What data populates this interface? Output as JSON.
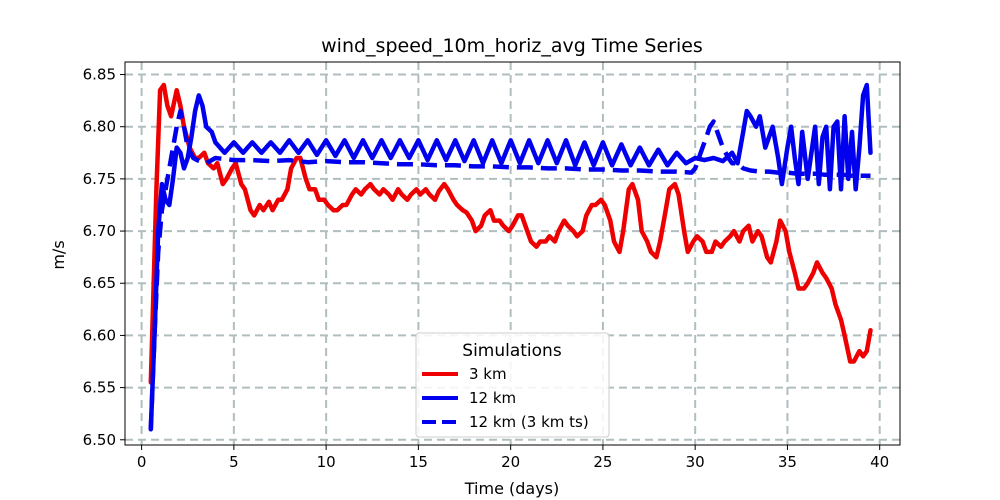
{
  "chart_data": {
    "type": "line",
    "title": "wind_speed_10m_horiz_avg Time Series",
    "xlabel": "Time (days)",
    "ylabel": "m/s",
    "xlim": [
      -0.9,
      41.1
    ],
    "ylim": [
      6.495,
      6.862
    ],
    "xticks": [
      "0",
      "5",
      "10",
      "15",
      "20",
      "25",
      "30",
      "35",
      "40"
    ],
    "yticks": [
      "6.50",
      "6.55",
      "6.60",
      "6.65",
      "6.70",
      "6.75",
      "6.80",
      "6.85"
    ],
    "grid": true,
    "legend": {
      "title": "Simulations",
      "position": "bottom-center"
    },
    "series": [
      {
        "name": "3 km",
        "color": "#ee0000",
        "style": "solid",
        "x": [
          0.5,
          0.8,
          1.0,
          1.2,
          1.4,
          1.6,
          1.9,
          2.1,
          2.3,
          2.6,
          2.9,
          3.1,
          3.4,
          3.6,
          3.9,
          4.1,
          4.4,
          4.6,
          4.9,
          5.1,
          5.4,
          5.6,
          5.9,
          6.1,
          6.4,
          6.6,
          6.9,
          7.1,
          7.4,
          7.6,
          7.9,
          8.1,
          8.4,
          8.6,
          8.9,
          9.1,
          9.4,
          9.6,
          9.9,
          10.1,
          10.4,
          10.6,
          10.9,
          11.1,
          11.4,
          11.6,
          11.9,
          12.1,
          12.4,
          12.6,
          12.9,
          13.1,
          13.4,
          13.6,
          13.9,
          14.1,
          14.4,
          14.6,
          14.9,
          15.1,
          15.4,
          15.6,
          15.9,
          16.1,
          16.4,
          16.6,
          16.9,
          17.1,
          17.4,
          17.6,
          17.9,
          18.1,
          18.4,
          18.6,
          18.9,
          19.1,
          19.4,
          19.6,
          19.9,
          20.1,
          20.4,
          20.6,
          20.9,
          21.1,
          21.4,
          21.6,
          21.9,
          22.1,
          22.4,
          22.6,
          22.9,
          23.1,
          23.4,
          23.6,
          23.9,
          24.1,
          24.4,
          24.6,
          24.9,
          25.1,
          25.4,
          25.6,
          25.9,
          26.1,
          26.4,
          26.6,
          26.9,
          27.1,
          27.4,
          27.6,
          27.9,
          28.1,
          28.4,
          28.6,
          28.9,
          29.1,
          29.4,
          29.6,
          29.9,
          30.1,
          30.4,
          30.6,
          30.9,
          31.1,
          31.4,
          31.6,
          31.9,
          32.1,
          32.4,
          32.6,
          32.9,
          33.1,
          33.4,
          33.6,
          33.9,
          34.1,
          34.4,
          34.6,
          34.9,
          35.1,
          35.4,
          35.6,
          35.9,
          36.1,
          36.4,
          36.6,
          36.9,
          37.1,
          37.4,
          37.6,
          37.9,
          38.1,
          38.4,
          38.6,
          38.9,
          39.1,
          39.3,
          39.5
        ],
        "y": [
          6.555,
          6.74,
          6.835,
          6.84,
          6.82,
          6.81,
          6.835,
          6.82,
          6.8,
          6.78,
          6.77,
          6.77,
          6.775,
          6.765,
          6.76,
          6.765,
          6.745,
          6.75,
          6.76,
          6.765,
          6.745,
          6.74,
          6.72,
          6.715,
          6.725,
          6.72,
          6.728,
          6.72,
          6.73,
          6.73,
          6.74,
          6.76,
          6.77,
          6.77,
          6.75,
          6.74,
          6.74,
          6.73,
          6.73,
          6.725,
          6.72,
          6.72,
          6.725,
          6.725,
          6.735,
          6.74,
          6.735,
          6.74,
          6.745,
          6.74,
          6.735,
          6.74,
          6.735,
          6.73,
          6.74,
          6.735,
          6.73,
          6.735,
          6.74,
          6.735,
          6.74,
          6.735,
          6.73,
          6.738,
          6.745,
          6.74,
          6.73,
          6.725,
          6.72,
          6.718,
          6.71,
          6.7,
          6.705,
          6.715,
          6.72,
          6.71,
          6.71,
          6.705,
          6.7,
          6.705,
          6.715,
          6.715,
          6.7,
          6.69,
          6.685,
          6.69,
          6.69,
          6.695,
          6.69,
          6.7,
          6.71,
          6.705,
          6.7,
          6.695,
          6.7,
          6.715,
          6.725,
          6.725,
          6.73,
          6.725,
          6.71,
          6.69,
          6.68,
          6.7,
          6.74,
          6.745,
          6.73,
          6.7,
          6.69,
          6.68,
          6.675,
          6.69,
          6.72,
          6.74,
          6.745,
          6.735,
          6.7,
          6.68,
          6.69,
          6.695,
          6.69,
          6.68,
          6.68,
          6.69,
          6.685,
          6.69,
          6.695,
          6.7,
          6.69,
          6.7,
          6.705,
          6.69,
          6.7,
          6.695,
          6.675,
          6.67,
          6.69,
          6.71,
          6.7,
          6.68,
          6.66,
          6.645,
          6.645,
          6.65,
          6.66,
          6.67,
          6.66,
          6.655,
          6.645,
          6.63,
          6.615,
          6.6,
          6.575,
          6.575,
          6.585,
          6.58,
          6.585,
          6.605
        ]
      },
      {
        "name": "12 km",
        "color": "#0000ee",
        "style": "solid",
        "x": [
          0.5,
          0.7,
          0.9,
          1.1,
          1.3,
          1.5,
          1.7,
          1.9,
          2.1,
          2.3,
          2.5,
          2.7,
          2.9,
          3.1,
          3.3,
          3.5,
          3.8,
          4.0,
          4.5,
          5.0,
          5.5,
          6.0,
          6.5,
          7.0,
          7.5,
          8.0,
          8.5,
          9.0,
          9.5,
          10.0,
          10.5,
          11.0,
          11.5,
          12.0,
          12.5,
          13.0,
          13.5,
          14.0,
          14.5,
          15.0,
          15.5,
          16.0,
          16.5,
          17.0,
          17.5,
          18.0,
          18.5,
          19.0,
          19.5,
          20.0,
          20.5,
          21.0,
          21.5,
          22.0,
          22.5,
          23.0,
          23.5,
          24.0,
          24.5,
          25.0,
          25.5,
          26.0,
          26.5,
          27.0,
          27.5,
          28.0,
          28.5,
          29.0,
          29.5,
          30.0,
          30.5,
          31.0,
          31.5,
          32.0,
          32.3,
          32.6,
          32.8,
          33.0,
          33.3,
          33.5,
          33.8,
          34.0,
          34.2,
          34.5,
          34.7,
          35.0,
          35.2,
          35.4,
          35.6,
          35.8,
          36.1,
          36.3,
          36.5,
          36.7,
          36.9,
          37.1,
          37.3,
          37.5,
          37.7,
          37.9,
          38.1,
          38.3,
          38.5,
          38.7,
          38.9,
          39.1,
          39.3,
          39.5
        ],
        "y": [
          6.51,
          6.6,
          6.7,
          6.745,
          6.73,
          6.725,
          6.75,
          6.78,
          6.775,
          6.76,
          6.77,
          6.79,
          6.815,
          6.83,
          6.82,
          6.8,
          6.795,
          6.785,
          6.775,
          6.785,
          6.775,
          6.785,
          6.775,
          6.785,
          6.775,
          6.787,
          6.775,
          6.787,
          6.773,
          6.787,
          6.772,
          6.787,
          6.77,
          6.787,
          6.77,
          6.787,
          6.77,
          6.787,
          6.77,
          6.787,
          6.768,
          6.787,
          6.768,
          6.787,
          6.767,
          6.787,
          6.765,
          6.787,
          6.765,
          6.787,
          6.765,
          6.787,
          6.765,
          6.787,
          6.765,
          6.787,
          6.763,
          6.785,
          6.763,
          6.785,
          6.763,
          6.783,
          6.763,
          6.78,
          6.763,
          6.778,
          6.763,
          6.775,
          6.765,
          6.77,
          6.768,
          6.77,
          6.767,
          6.775,
          6.765,
          6.795,
          6.815,
          6.81,
          6.8,
          6.81,
          6.78,
          6.79,
          6.8,
          6.77,
          6.745,
          6.78,
          6.8,
          6.77,
          6.745,
          6.795,
          6.75,
          6.775,
          6.8,
          6.745,
          6.79,
          6.8,
          6.74,
          6.8,
          6.805,
          6.74,
          6.81,
          6.75,
          6.795,
          6.74,
          6.78,
          6.83,
          6.84,
          6.775
        ]
      },
      {
        "name": "12 km (3 km ts)",
        "color": "#0000ee",
        "style": "dashed",
        "x": [
          0.5,
          0.7,
          0.9,
          1.1,
          1.3,
          1.5,
          1.7,
          1.9,
          2.1,
          2.3,
          2.5,
          2.8,
          3.0,
          3.5,
          4.0,
          5.0,
          6.0,
          7.0,
          8.0,
          9.0,
          10.0,
          11.0,
          12.0,
          13.0,
          14.0,
          15.0,
          16.0,
          17.0,
          18.0,
          19.0,
          20.0,
          21.0,
          22.0,
          23.0,
          24.0,
          25.0,
          26.0,
          27.0,
          28.0,
          29.0,
          29.8,
          30.0,
          30.3,
          30.6,
          30.8,
          31.0,
          31.2,
          31.5,
          31.8,
          32.0,
          32.3,
          32.6,
          33.0,
          33.5,
          34.0,
          34.5,
          35.0,
          35.5,
          36.0,
          36.5,
          37.0,
          37.5,
          38.0,
          38.5,
          39.0,
          39.5
        ],
        "y": [
          6.51,
          6.6,
          6.68,
          6.72,
          6.74,
          6.76,
          6.78,
          6.8,
          6.815,
          6.8,
          6.78,
          6.77,
          6.768,
          6.765,
          6.77,
          6.768,
          6.768,
          6.767,
          6.768,
          6.766,
          6.767,
          6.766,
          6.766,
          6.765,
          6.764,
          6.764,
          6.763,
          6.763,
          6.762,
          6.762,
          6.761,
          6.761,
          6.76,
          6.76,
          6.759,
          6.759,
          6.758,
          6.758,
          6.757,
          6.757,
          6.756,
          6.76,
          6.775,
          6.79,
          6.8,
          6.805,
          6.795,
          6.78,
          6.77,
          6.765,
          6.765,
          6.76,
          6.758,
          6.757,
          6.757,
          6.756,
          6.756,
          6.755,
          6.755,
          6.755,
          6.754,
          6.754,
          6.754,
          6.753,
          6.753,
          6.753
        ]
      }
    ]
  }
}
